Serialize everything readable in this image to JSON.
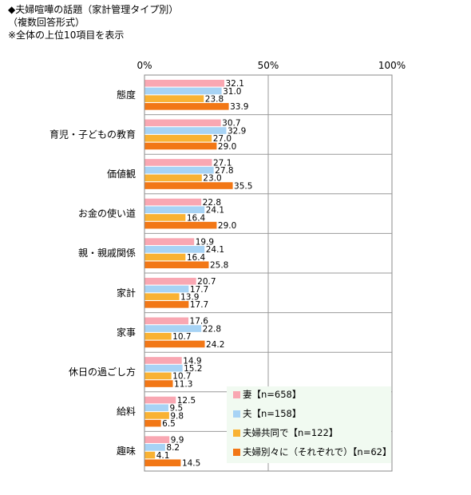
{
  "header": {
    "title": "◆夫婦喧嘩の話題（家計管理タイプ別）",
    "subtitle": "（複数回答形式）",
    "note": "※全体の上位10項目を表示"
  },
  "chart_data": {
    "type": "bar",
    "orientation": "horizontal",
    "title": "◆夫婦喧嘩の話題（家計管理タイプ別）",
    "subtitle": "（複数回答形式）",
    "note": "※全体の上位10項目を表示",
    "xlim": [
      0,
      100
    ],
    "x_ticks": [
      "0%",
      "50%",
      "100%"
    ],
    "x_tick_values": [
      0,
      50,
      100
    ],
    "grid": true,
    "legend_position": "bottom-right",
    "categories": [
      "態度",
      "育児・子どもの教育",
      "価値観",
      "お金の使い道",
      "親・親戚関係",
      "家計",
      "家事",
      "休日の過ごし方",
      "給料",
      "趣味"
    ],
    "series": [
      {
        "name": "妻【n=658】",
        "color": "#f9a7b2",
        "values": [
          32.1,
          30.7,
          27.1,
          22.8,
          19.9,
          20.7,
          17.6,
          14.9,
          12.5,
          9.9
        ]
      },
      {
        "name": "夫【n=158】",
        "color": "#a7d3f5",
        "values": [
          31.0,
          32.9,
          27.8,
          24.1,
          24.1,
          17.7,
          22.8,
          15.2,
          9.5,
          8.2
        ]
      },
      {
        "name": "夫婦共同で【n=122】",
        "color": "#f9b233",
        "values": [
          23.8,
          27.0,
          23.0,
          16.4,
          16.4,
          13.9,
          10.7,
          10.7,
          9.8,
          4.1
        ]
      },
      {
        "name": "夫婦別々に（それぞれで）【n=62】",
        "color": "#f27716",
        "values": [
          33.9,
          29.0,
          35.5,
          29.0,
          25.8,
          17.7,
          24.2,
          11.3,
          6.5,
          14.5
        ]
      }
    ]
  }
}
